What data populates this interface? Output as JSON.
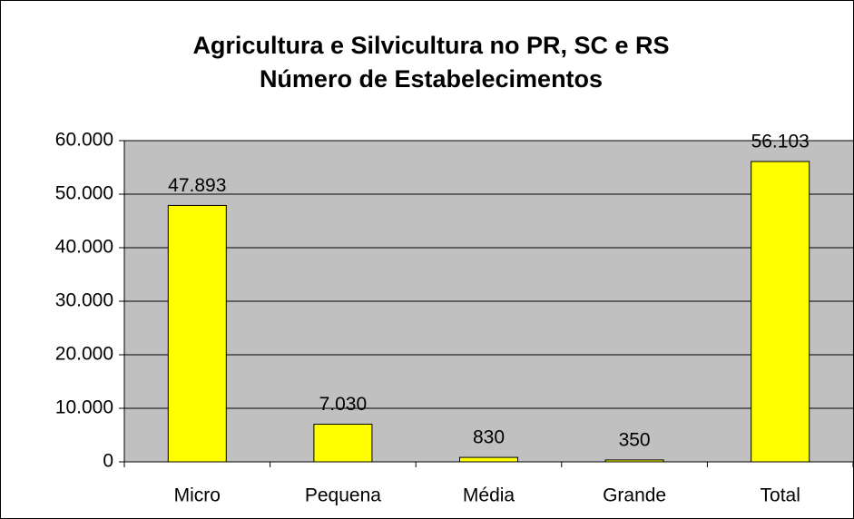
{
  "chart_data": {
    "type": "bar",
    "title": "Agricultura e Silvicultura no PR, SC e RS",
    "subtitle": "Número de Estabelecimentos",
    "categories": [
      "Micro",
      "Pequena",
      "Média",
      "Grande",
      "Total"
    ],
    "values": [
      47893,
      7030,
      830,
      350,
      56103
    ],
    "value_labels": [
      "47.893",
      "7.030",
      "830",
      "350",
      "56.103"
    ],
    "color": "#ffff00",
    "ylim": [
      0,
      60000
    ],
    "yticks": [
      0,
      {
        "value": 10000,
        "label": "10.000"
      },
      {
        "value": 20000,
        "label": "20.000"
      },
      {
        "value": 30000,
        "label": "30.000"
      },
      {
        "value": 40000,
        "label": "40.000"
      },
      {
        "value": 50000,
        "label": "50.000"
      },
      {
        "value": 60000,
        "label": "60.000"
      }
    ],
    "grid": true
  }
}
